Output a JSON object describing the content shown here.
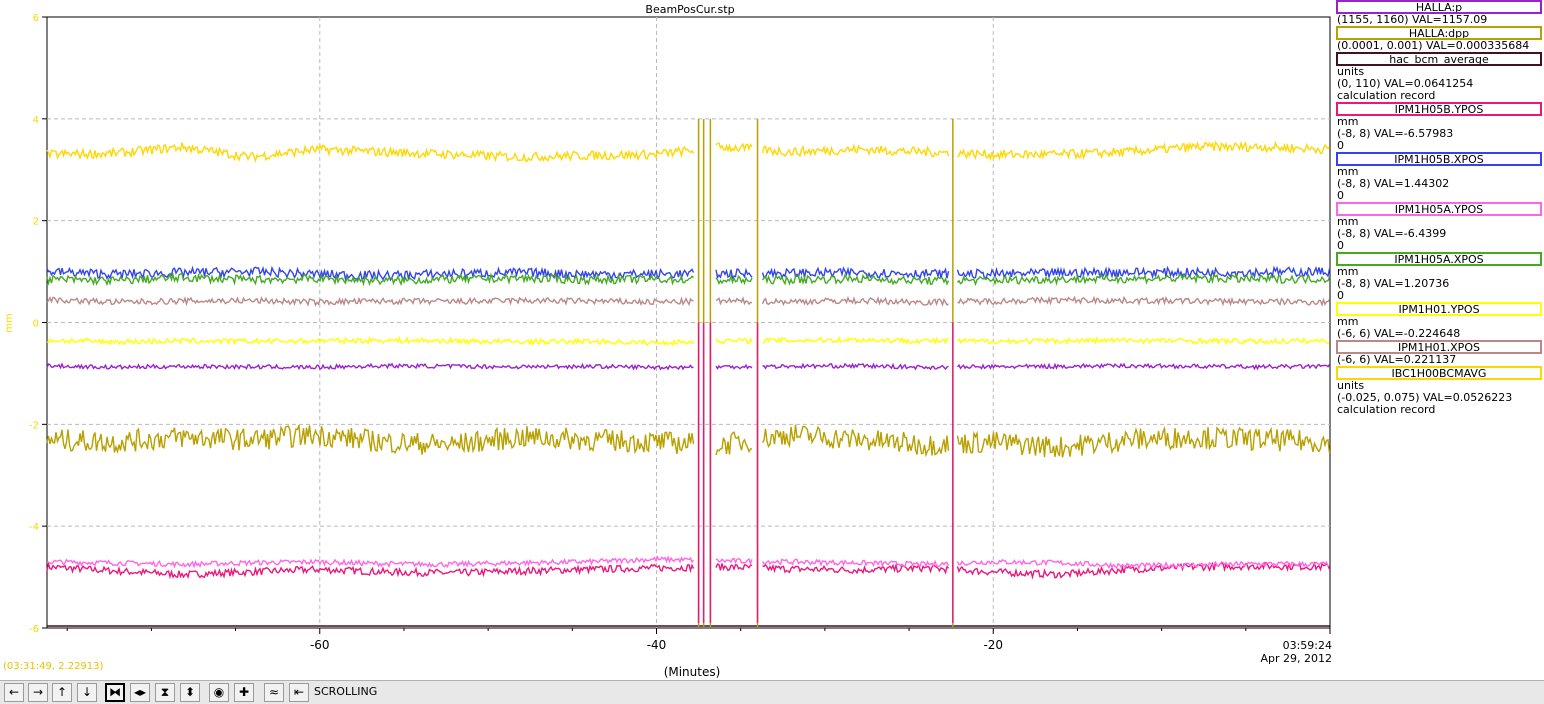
{
  "chart_data": {
    "type": "line",
    "title": "BeamPosCur.stp",
    "xlabel": "(Minutes)",
    "ylabel": "mm",
    "xlim": [
      -76.2,
      0
    ],
    "ylim": [
      -6,
      6
    ],
    "x_ticks": [
      -60,
      -40,
      -20
    ],
    "x_tick_labels": [
      "-60",
      "-40",
      "-20"
    ],
    "y_ticks": [
      -6,
      -4,
      -2,
      0,
      2,
      4,
      6
    ],
    "y_tick_labels": [
      "-6",
      "-4",
      "-2",
      "0",
      "2",
      "4",
      "6"
    ],
    "grid": true,
    "end_time": "03:59:24",
    "end_date": "Apr 29, 2012",
    "dropouts": [
      -37.5,
      -37.2,
      -36.8,
      -34.0,
      -22.4
    ],
    "series": [
      {
        "name": "IPM1H05B.YPOS",
        "color": "#e8197a",
        "values": [
          -4.8,
          -4.88,
          -4.95,
          -4.9,
          -4.85,
          -4.9,
          -4.92,
          -4.88,
          -4.85,
          -4.82,
          -4.8,
          -4.84,
          -4.86,
          -4.82,
          -4.9,
          -4.95,
          -4.85,
          -4.8,
          -4.78,
          -4.8
        ]
      },
      {
        "name": "IPM1H05A.YPOS",
        "color": "#ff66e6",
        "values": [
          -4.7,
          -4.72,
          -4.75,
          -4.72,
          -4.7,
          -4.74,
          -4.75,
          -4.72,
          -4.7,
          -4.65,
          -4.68,
          -4.7,
          -4.72,
          -4.75,
          -4.7,
          -4.72,
          -4.78,
          -4.76,
          -4.74,
          -4.75
        ]
      },
      {
        "name": "IBC1H00BCMAVG",
        "color": "#ffd700",
        "values": [
          3.3,
          3.32,
          3.45,
          3.25,
          3.4,
          3.35,
          3.3,
          3.25,
          3.28,
          3.3,
          3.45,
          3.35,
          3.4,
          3.35,
          3.3,
          3.3,
          3.35,
          3.45,
          3.45,
          3.4
        ]
      },
      {
        "name": "HALLA:dpp",
        "color": "#b8a000",
        "values": [
          -2.3,
          -2.35,
          -2.25,
          -2.3,
          -2.2,
          -2.35,
          -2.4,
          -2.25,
          -2.3,
          -2.35,
          -2.4,
          -2.2,
          -2.3,
          -2.4,
          -2.35,
          -2.45,
          -2.3,
          -2.25,
          -2.3,
          -2.35
        ]
      },
      {
        "name": "IPM1H05B.XPOS",
        "color": "#3344ee",
        "values": [
          1.0,
          0.95,
          0.98,
          1.0,
          0.95,
          0.92,
          0.96,
          0.98,
          0.95,
          0.95,
          0.96,
          0.97,
          0.98,
          0.96,
          0.95,
          0.97,
          0.99,
          0.98,
          0.99,
          1.0
        ]
      },
      {
        "name": "IPM1H05A.XPOS",
        "color": "#44aa22",
        "values": [
          0.85,
          0.82,
          0.88,
          0.84,
          0.86,
          0.82,
          0.85,
          0.87,
          0.84,
          0.85,
          0.83,
          0.84,
          0.86,
          0.82,
          0.83,
          0.85,
          0.86,
          0.87,
          0.85,
          0.86
        ]
      },
      {
        "name": "IPM1H01.XPOS",
        "color": "#bb8888",
        "values": [
          0.45,
          0.4,
          0.42,
          0.43,
          0.4,
          0.42,
          0.41,
          0.43,
          0.42,
          0.4,
          0.42,
          0.41,
          0.43,
          0.4,
          0.42,
          0.44,
          0.43,
          0.42,
          0.41,
          0.4
        ]
      },
      {
        "name": "IPM1H01.YPOS",
        "color": "#ffff00",
        "values": [
          -0.35,
          -0.38,
          -0.36,
          -0.37,
          -0.36,
          -0.35,
          -0.36,
          -0.38,
          -0.37,
          -0.4,
          -0.36,
          -0.35,
          -0.34,
          -0.36,
          -0.37,
          -0.36,
          -0.35,
          -0.36,
          -0.37,
          -0.36
        ]
      },
      {
        "name": "HALLA:p",
        "color": "#9a22cc",
        "values": [
          -0.85,
          -0.88,
          -0.86,
          -0.87,
          -0.88,
          -0.85,
          -0.86,
          -0.87,
          -0.86,
          -0.88,
          -0.87,
          -0.86,
          -0.85,
          -0.88,
          -0.87,
          -0.86,
          -0.85,
          -0.86,
          -0.87,
          -0.86
        ]
      },
      {
        "name": "hac_bcm_average",
        "color": "#441122",
        "values": [
          -5.96,
          -5.96,
          -5.96,
          -5.96,
          -5.96,
          -5.96,
          -5.96,
          -5.96,
          -5.96,
          -5.96,
          -5.96,
          -5.96,
          -5.96,
          -5.96,
          -5.96,
          -5.96,
          -5.96,
          -5.96,
          -5.96,
          -5.96
        ]
      }
    ]
  },
  "legend": [
    {
      "name": "HALLA:p",
      "color": "#9a22cc",
      "lines": [
        "(1155, 1160) VAL=1157.09"
      ]
    },
    {
      "name": "HALLA:dpp",
      "color": "#b8a000",
      "lines": [
        "(0.0001, 0.001) VAL=0.000335684"
      ]
    },
    {
      "name": "hac_bcm_average",
      "color": "#441122",
      "lines": [
        "units",
        "(0, 110) VAL=0.0641254",
        "calculation record"
      ]
    },
    {
      "name": "IPM1H05B.YPOS",
      "color": "#e8197a",
      "lines": [
        "mm",
        "(-8, 8) VAL=-6.57983",
        "0"
      ]
    },
    {
      "name": "IPM1H05B.XPOS",
      "color": "#3344ee",
      "lines": [
        "mm",
        "(-8, 8) VAL=1.44302",
        "0"
      ]
    },
    {
      "name": "IPM1H05A.YPOS",
      "color": "#ff66e6",
      "lines": [
        "mm",
        "(-8, 8) VAL=-6.4399",
        "0"
      ]
    },
    {
      "name": "IPM1H05A.XPOS",
      "color": "#44aa22",
      "lines": [
        "mm",
        "(-8, 8) VAL=1.20736",
        "0"
      ]
    },
    {
      "name": "IPM1H01.YPOS",
      "color": "#ffff00",
      "lines": [
        "mm",
        "(-6, 6) VAL=-0.224648"
      ]
    },
    {
      "name": "IPM1H01.XPOS",
      "color": "#bb8888",
      "lines": [
        "(-6, 6) VAL=0.221137"
      ]
    },
    {
      "name": "IBC1H00BCMAVG",
      "color": "#ffd700",
      "lines": [
        "units",
        "(-0.025, 0.075) VAL=0.0526223",
        "calculation record"
      ]
    }
  ],
  "cursor_readout": "(03:31:49, 2.22913)",
  "toolbar": {
    "buttons": [
      {
        "name": "scroll-left-button",
        "icon": "arrow-left-icon",
        "glyph": "←",
        "active": false
      },
      {
        "name": "scroll-right-button",
        "icon": "arrow-right-icon",
        "glyph": "→",
        "active": false
      },
      {
        "name": "scroll-up-button",
        "icon": "arrow-up-icon",
        "glyph": "↑",
        "active": false
      },
      {
        "name": "scroll-down-button",
        "icon": "arrow-down-icon",
        "glyph": "↓",
        "active": false
      },
      {
        "name": "zoom-in-x-button",
        "icon": "zoom-in-x-icon",
        "glyph": "⧓",
        "active": true
      },
      {
        "name": "zoom-out-x-button",
        "icon": "zoom-out-x-icon",
        "glyph": "◂▸",
        "active": false
      },
      {
        "name": "zoom-in-y-button",
        "icon": "zoom-in-y-icon",
        "glyph": "⧗",
        "active": false
      },
      {
        "name": "zoom-out-y-button",
        "icon": "zoom-out-y-icon",
        "glyph": "⬍",
        "active": false
      },
      {
        "name": "zoom-reset-button",
        "icon": "zoom-reset-icon",
        "glyph": "◉",
        "active": false
      },
      {
        "name": "add-button",
        "icon": "plus-icon",
        "glyph": "✚",
        "active": false
      },
      {
        "name": "autoscale-button",
        "icon": "autoscale-icon",
        "glyph": "≈",
        "active": false
      },
      {
        "name": "scroll-end-button",
        "icon": "scroll-end-icon",
        "glyph": "⇤",
        "active": false
      }
    ],
    "mode_label": "SCROLLING"
  }
}
